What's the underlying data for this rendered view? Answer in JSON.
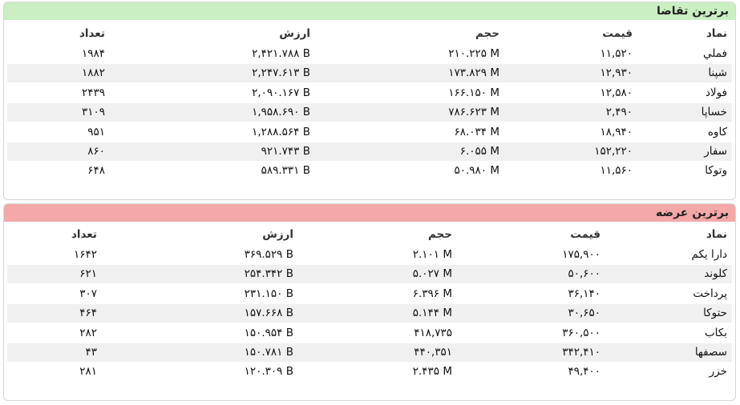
{
  "panels": [
    {
      "title": "برترین تقاضا",
      "headers": [
        "نماد",
        "قیمت",
        "حجم",
        "ارزش",
        "تعداد"
      ],
      "rows": [
        [
          "فملي",
          "۱۱,۵۲۰",
          "۲۱۰.۲۲۵ M",
          "۲,۴۲۱.۷۸۸ B",
          "۱۹۸۴"
        ],
        [
          "شپنا",
          "۱۲,۹۳۰",
          "۱۷۳.۸۲۹ M",
          "۲,۲۴۷.۶۱۳ B",
          "۱۸۸۲"
        ],
        [
          "فولاد",
          "۱۲,۵۸۰",
          "۱۶۶.۱۵۰ M",
          "۲,۰۹۰.۱۶۷ B",
          "۲۴۳۹"
        ],
        [
          "خساپا",
          "۲,۴۹۰",
          "۷۸۶.۶۲۳ M",
          "۱,۹۵۸.۶۹۰ B",
          "۳۱۰۹"
        ],
        [
          "کاوه",
          "۱۸,۹۴۰",
          "۶۸.۰۳۴ M",
          "۱,۲۸۸.۵۶۴ B",
          "۹۵۱"
        ],
        [
          "سفار",
          "۱۵۲,۲۲۰",
          "۶.۰۵۵ M",
          "۹۲۱.۷۴۳ B",
          "۸۶۰"
        ],
        [
          "وتوکا",
          "۱۱,۵۶۰",
          "۵۰.۹۸۰ M",
          "۵۸۹.۳۳۱ B",
          "۶۴۸"
        ]
      ]
    },
    {
      "title": "برترین عرضه",
      "headers": [
        "نماد",
        "قیمت",
        "حجم",
        "ارزش",
        "تعداد"
      ],
      "rows": [
        [
          "دارا یکم",
          "۱۷۵,۹۰۰",
          "۲.۱۰۱ M",
          "۳۶۹.۵۲۹ B",
          "۱۶۴۲"
        ],
        [
          "کلوند",
          "۵۰,۶۰۰",
          "۵.۰۲۷ M",
          "۲۵۴.۳۴۲ B",
          "۶۲۱"
        ],
        [
          "پرداخت",
          "۳۶,۱۴۰",
          "۶.۳۹۶ M",
          "۲۳۱.۱۵۰ B",
          "۳۰۷"
        ],
        [
          "حتوکا",
          "۳۰,۶۵۰",
          "۵.۱۴۴ M",
          "۱۵۷.۶۶۸ B",
          "۴۶۴"
        ],
        [
          "بکاب",
          "۳۶۰,۵۰۰",
          "۴۱۸,۷۳۵",
          "۱۵۰.۹۵۴ B",
          "۲۸۲"
        ],
        [
          "سصفها",
          "۳۴۲,۴۱۰",
          "۴۴۰,۳۵۱",
          "۱۵۰.۷۸۱ B",
          "۴۳"
        ],
        [
          "خزر",
          "۴۹,۴۰۰",
          "۲.۴۳۵ M",
          "۱۲۰.۳۰۹ B",
          "۲۸۱"
        ]
      ]
    }
  ]
}
